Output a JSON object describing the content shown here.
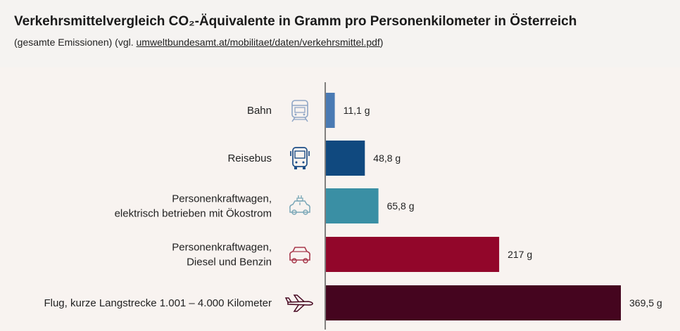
{
  "header": {
    "title": "Verkehrsmittelvergleich CO₂-Äquivalente in Gramm pro Personenkilometer in Österreich",
    "subtitle_prefix": "(gesamte Emissionen) (vgl. ",
    "subtitle_link": "umweltbundesamt.at/mobilitaet/daten/verkehrsmittel.pdf",
    "subtitle_suffix": ")"
  },
  "chart_data": {
    "type": "bar",
    "orientation": "horizontal",
    "title": "Verkehrsmittelvergleich CO₂-Äquivalente in Gramm pro Personenkilometer in Österreich",
    "subtitle": "(gesamte Emissionen) (vgl. umweltbundesamt.at/mobilitaet/daten/verkehrsmittel.pdf)",
    "xlabel": "",
    "ylabel": "",
    "xlim": [
      0,
      369.5
    ],
    "grid": false,
    "legend": "none",
    "categories": [
      [
        "Bahn"
      ],
      [
        "Reisebus"
      ],
      [
        "Personenkraftwagen,",
        "elektrisch betrieben mit Ökostrom"
      ],
      [
        "Personenkraftwagen,",
        "Diesel und Benzin"
      ],
      [
        "Flug, kurze Langstrecke 1.001 – 4.000 Kilometer"
      ]
    ],
    "values": [
      11.1,
      48.8,
      65.8,
      217,
      369.5
    ],
    "value_labels": [
      "11,1 g",
      "48,8 g",
      "65,8 g",
      "217 g",
      "369,5 g"
    ],
    "colors": [
      "#4a7ab3",
      "#10497f",
      "#3a8fa4",
      "#92062a",
      "#45051f"
    ],
    "icons": [
      "train-icon",
      "bus-icon",
      "electric-car-icon",
      "car-icon",
      "airplane-icon"
    ],
    "icon_colors": [
      "#8fa6c6",
      "#1d4e86",
      "#7aa7b7",
      "#a83a4d",
      "#45051f"
    ]
  }
}
